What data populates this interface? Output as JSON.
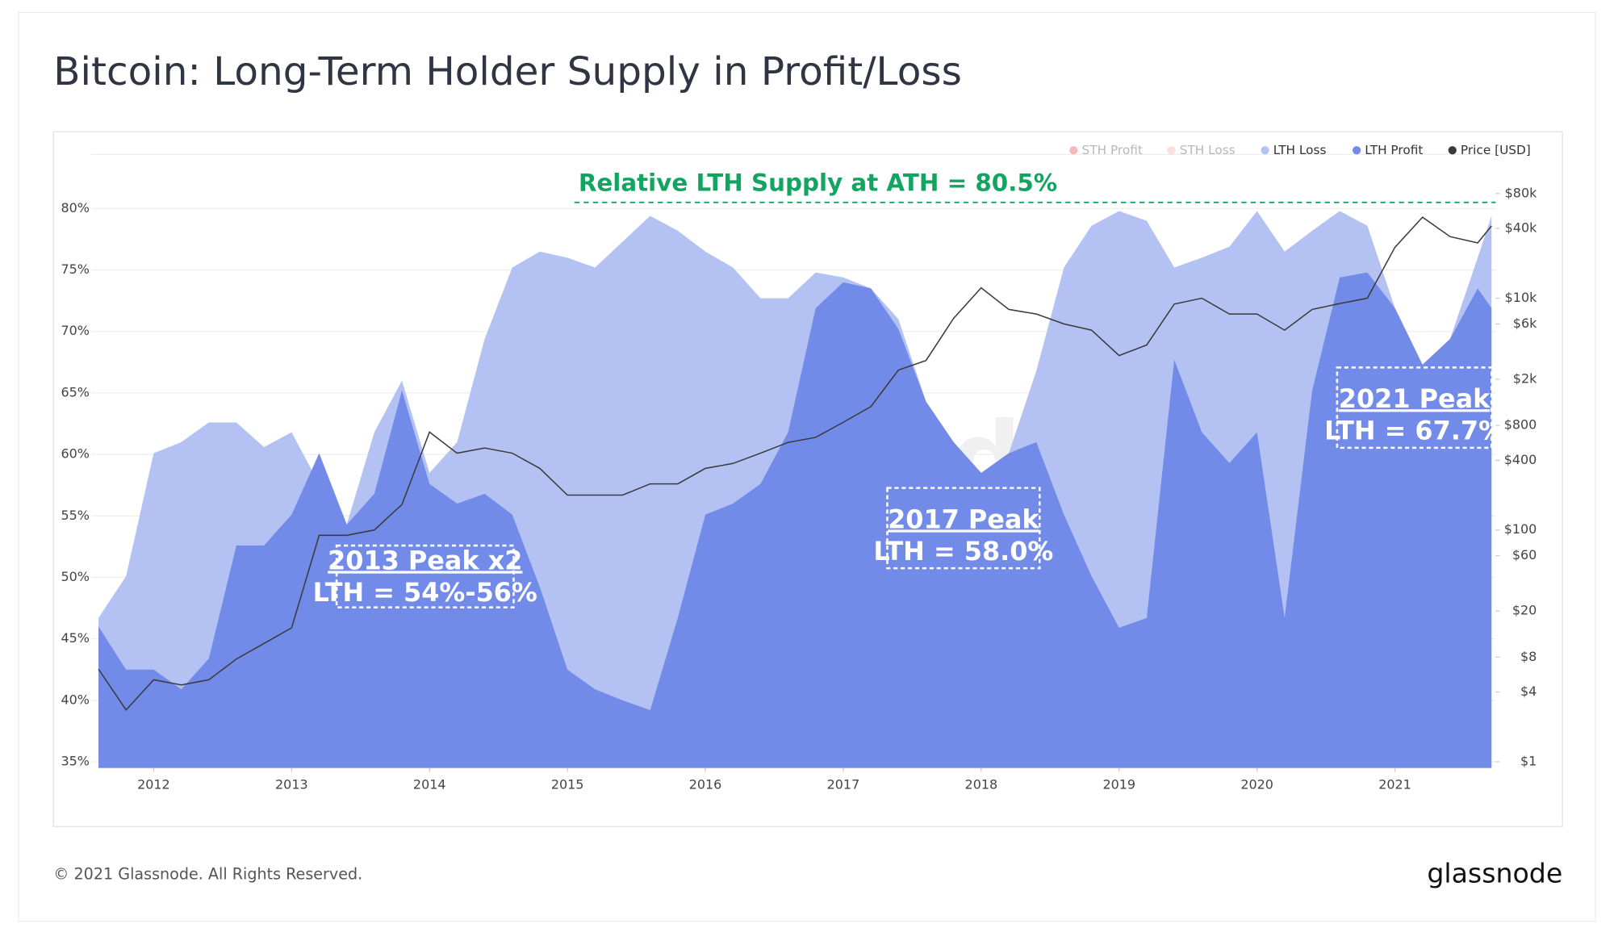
{
  "chart_data": {
    "type": "area",
    "title": "Bitcoin: Long-Term Holder Supply in Profit/Loss",
    "x": [
      2011.6,
      2011.8,
      2012.0,
      2012.2,
      2012.4,
      2012.6,
      2012.8,
      2013.0,
      2013.2,
      2013.4,
      2013.6,
      2013.8,
      2014.0,
      2014.2,
      2014.4,
      2014.6,
      2014.8,
      2015.0,
      2015.2,
      2015.4,
      2015.6,
      2015.8,
      2016.0,
      2016.2,
      2016.4,
      2016.6,
      2016.8,
      2017.0,
      2017.2,
      2017.4,
      2017.6,
      2017.8,
      2018.0,
      2018.2,
      2018.4,
      2018.6,
      2018.8,
      2019.0,
      2019.2,
      2019.4,
      2019.6,
      2019.8,
      2020.0,
      2020.2,
      2020.4,
      2020.6,
      2020.8,
      2021.0,
      2021.2,
      2021.4,
      2021.6,
      2021.7
    ],
    "series": [
      {
        "name": "LTH Loss",
        "color": "#b4c2f3",
        "values": [
          46.7,
          50.1,
          60.1,
          61,
          62.6,
          62.6,
          60.6,
          61.8,
          57.6,
          54.3,
          61.8,
          66,
          58.5,
          61,
          69.4,
          75.2,
          76.5,
          76,
          75.2,
          77.3,
          79.4,
          78.2,
          76.5,
          75.2,
          72.7,
          72.7,
          74.8,
          74.4,
          73.5,
          71,
          64.3,
          61,
          58.5,
          60.1,
          66.8,
          75.2,
          78.6,
          79.8,
          79,
          75.2,
          76,
          76.9,
          79.8,
          76.5,
          78.2,
          79.8,
          78.6,
          71.9,
          67.3,
          69.4,
          76,
          79.4
        ]
      },
      {
        "name": "LTH Profit",
        "color": "#728be8",
        "values": [
          46,
          42.5,
          42.5,
          40.9,
          43.4,
          52.6,
          52.6,
          55.1,
          60.1,
          54.3,
          56.8,
          65.2,
          57.6,
          56,
          56.8,
          55.1,
          49.2,
          42.5,
          40.9,
          40,
          39.2,
          46.7,
          55.1,
          56,
          57.6,
          61.8,
          71.9,
          74,
          73.5,
          70.2,
          64.3,
          61,
          58.5,
          60.1,
          61,
          55.1,
          50.1,
          45.9,
          46.7,
          67.7,
          61.8,
          59.3,
          61.8,
          46.7,
          65.2,
          74.4,
          74.8,
          71.9,
          67.3,
          69.4,
          73.5,
          71.9
        ]
      },
      {
        "name": "Price [USD]",
        "color": "#3a3a3a",
        "axis": "y2",
        "values": [
          6.3,
          2.8,
          5.1,
          4.6,
          5.1,
          7.7,
          10.5,
          14.3,
          90,
          90,
          100,
          166,
          700,
          460,
          510,
          460,
          340,
          200,
          200,
          200,
          250,
          250,
          340,
          375,
          460,
          570,
          630,
          850,
          1160,
          2400,
          2900,
          6700,
          12300,
          8000,
          7300,
          6000,
          5300,
          3200,
          3950,
          8900,
          10000,
          7300,
          7300,
          5300,
          8000,
          9000,
          10000,
          27500,
          50000,
          34000,
          30000,
          42000
        ]
      }
    ],
    "inactive_series": [
      {
        "name": "STH Profit",
        "color": "#e53935"
      },
      {
        "name": "STH Loss",
        "color": "#f4a3a3"
      }
    ],
    "xlim": [
      2011.55,
      2021.73
    ],
    "xticks": [
      2012,
      2013,
      2014,
      2015,
      2016,
      2017,
      2018,
      2019,
      2020,
      2021
    ],
    "ylim": [
      34.5,
      84.4
    ],
    "yticks": [
      {
        "value": 35,
        "label": "35%"
      },
      {
        "value": 40,
        "label": "40%"
      },
      {
        "value": 45,
        "label": "45%"
      },
      {
        "value": 50,
        "label": "50%"
      },
      {
        "value": 55,
        "label": "55%"
      },
      {
        "value": 60,
        "label": "60%"
      },
      {
        "value": 65,
        "label": "65%"
      },
      {
        "value": 70,
        "label": "70%"
      },
      {
        "value": 75,
        "label": "75%"
      },
      {
        "value": 80,
        "label": "80%"
      }
    ],
    "y2lim": [
      0.885,
      174000
    ],
    "y2scale": "log",
    "y2ticks": [
      {
        "value": 1,
        "label": "$1"
      },
      {
        "value": 4,
        "label": "$4"
      },
      {
        "value": 8,
        "label": "$8"
      },
      {
        "value": 20,
        "label": "$20"
      },
      {
        "value": 60,
        "label": "$60"
      },
      {
        "value": 100,
        "label": "$100"
      },
      {
        "value": 400,
        "label": "$400"
      },
      {
        "value": 800,
        "label": "$800"
      },
      {
        "value": 2000,
        "label": "$2k"
      },
      {
        "value": 6000,
        "label": "$6k"
      },
      {
        "value": 10000,
        "label": "$10k"
      },
      {
        "value": 40000,
        "label": "$40k"
      },
      {
        "value": 80000,
        "label": "$80k"
      }
    ],
    "grid": true,
    "legend": "top-right",
    "reference_line": {
      "value": 80.5,
      "label": "Relative LTH Supply at ATH = 80.5%",
      "color": "#12a561"
    },
    "annotations": [
      {
        "lines": [
          "2013 Peak x2",
          "LTH = 54%-56%"
        ]
      },
      {
        "lines": [
          "2017 Peak",
          "LTH = 58.0%"
        ]
      },
      {
        "lines": [
          "2021 Peak",
          "LTH = 67.7%"
        ]
      }
    ],
    "watermark": "glassnode",
    "footer": "© 2021 Glassnode. All Rights Reserved.",
    "logo": "glassnode"
  }
}
